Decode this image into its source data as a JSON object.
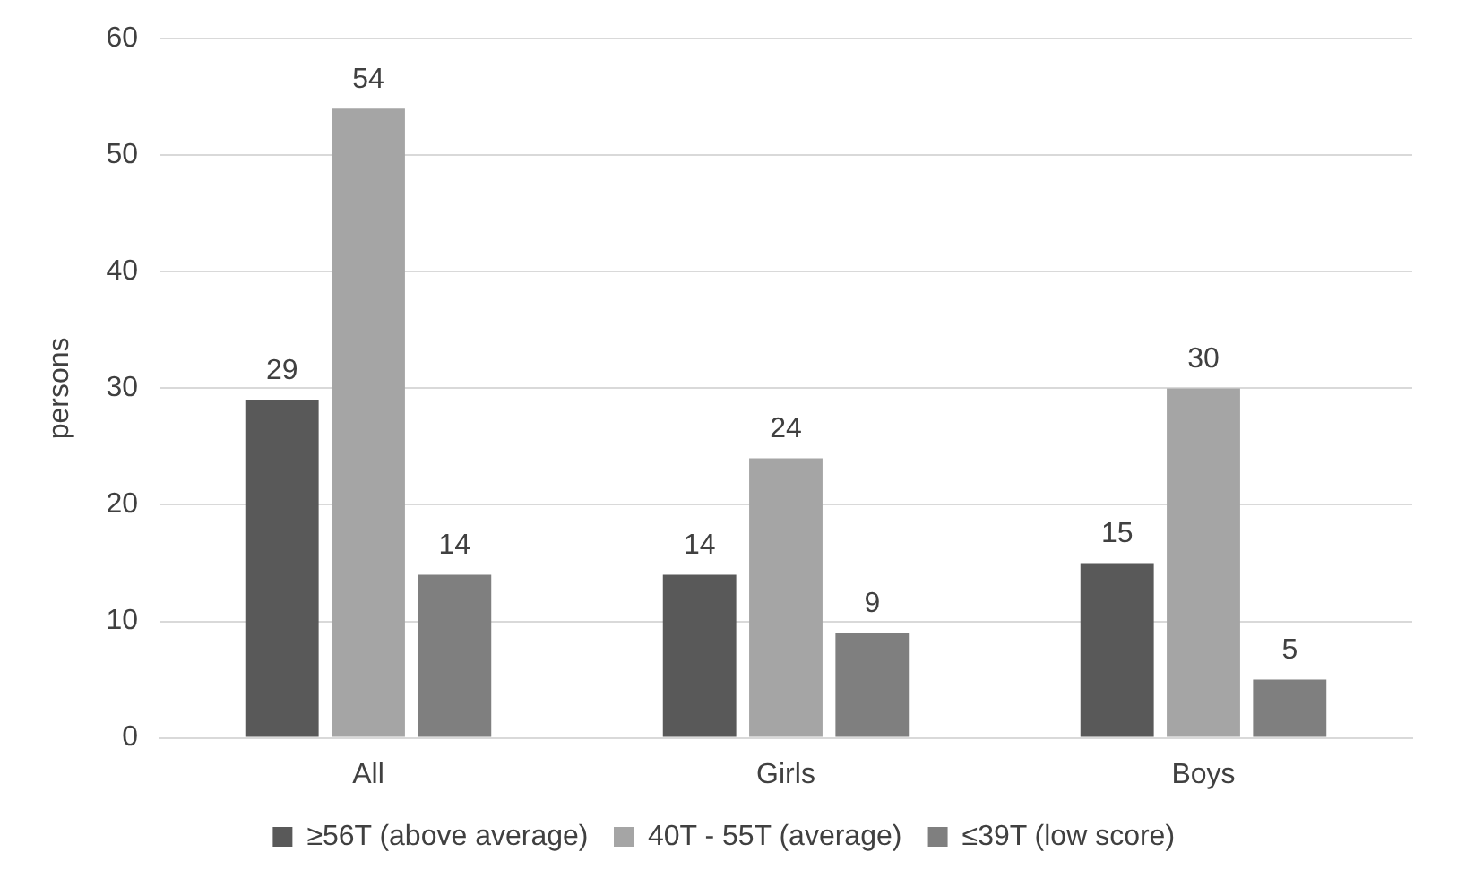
{
  "chart_data": {
    "type": "bar",
    "ylabel": "persons",
    "categories": [
      "All",
      "Girls",
      "Boys"
    ],
    "series": [
      {
        "name": "≥56T (above average)",
        "color": "#595959",
        "values": [
          29,
          14,
          15
        ]
      },
      {
        "name": "40T - 55T (average)",
        "color": "#a5a5a5",
        "values": [
          54,
          24,
          30
        ]
      },
      {
        "name": "≤39T (low score)",
        "color": "#7f7f7f",
        "values": [
          14,
          9,
          5
        ]
      }
    ],
    "ylim": [
      0,
      60
    ],
    "yticks": [
      0,
      10,
      20,
      30,
      40,
      50,
      60
    ],
    "grid": "y",
    "legend": "bottom",
    "data_labels": true
  }
}
